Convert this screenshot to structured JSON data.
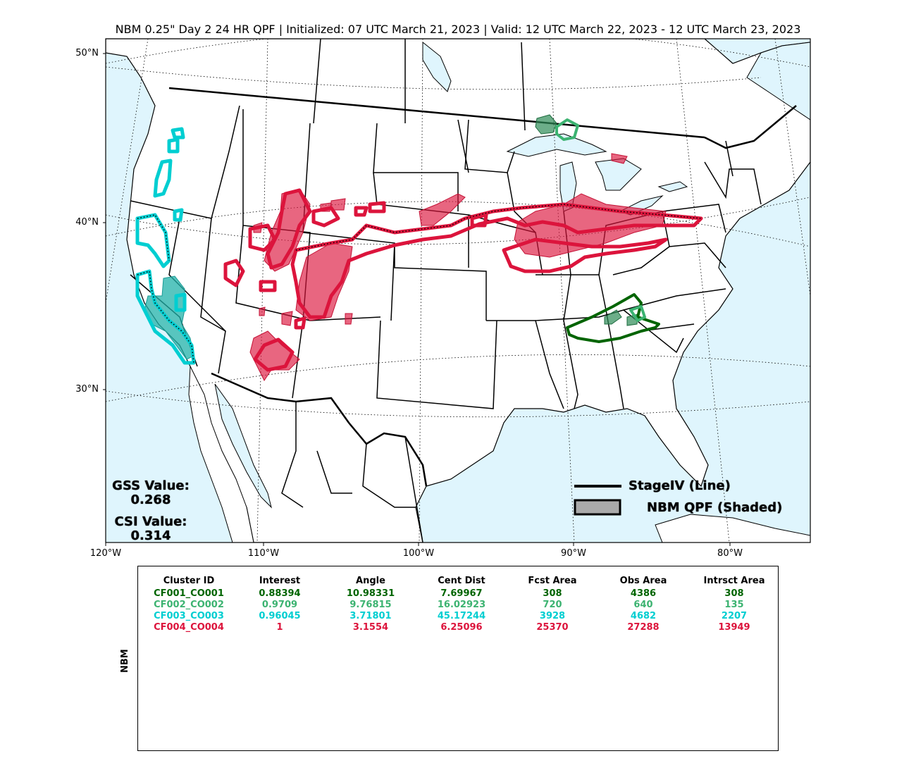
{
  "title": "NBM 0.25\" Day 2 24 HR QPF | Initialized: 07 UTC March 21, 2023 | Valid: 12 UTC March 22, 2023 - 12 UTC March 23, 2023",
  "lat_labels": [
    "50°N",
    "40°N",
    "30°N"
  ],
  "lon_labels": [
    "120°W",
    "110°W",
    "100°W",
    "90°W",
    "80°W"
  ],
  "stats": {
    "gss_label": "GSS Value:",
    "gss_value": "0.268",
    "csi_label": "CSI Value:",
    "csi_value": "0.314"
  },
  "legend": {
    "line_label": "StageIV (Line)",
    "shaded_label": "NBM QPF (Shaded)",
    "shaded_color": "#aaaaaa"
  },
  "colors": {
    "water": "#dff5fd",
    "land": "#ffffff",
    "cluster1": "#006400",
    "cluster2": "#3cb371",
    "cluster3": "#00ced1",
    "cluster4": "#dc143c"
  },
  "table": {
    "row_label": "NBM",
    "headers": [
      "Cluster ID",
      "Interest",
      "Angle",
      "Cent Dist",
      "Fcst Area",
      "Obs Area",
      "Intrsct Area"
    ],
    "rows": [
      {
        "color": "#006400",
        "cells": [
          "CF001_CO001",
          "0.88394",
          "10.98331",
          "7.69967",
          "308",
          "4386",
          "308"
        ]
      },
      {
        "color": "#3cb371",
        "cells": [
          "CF002_CO002",
          "0.9709",
          "9.76815",
          "16.02923",
          "720",
          "640",
          "135"
        ]
      },
      {
        "color": "#00ced1",
        "cells": [
          "CF003_CO003",
          "0.96045",
          "3.71801",
          "45.17244",
          "3928",
          "4682",
          "2207"
        ]
      },
      {
        "color": "#dc143c",
        "cells": [
          "CF004_CO004",
          "1",
          "3.1554",
          "6.25096",
          "25370",
          "27288",
          "13949"
        ]
      }
    ]
  }
}
